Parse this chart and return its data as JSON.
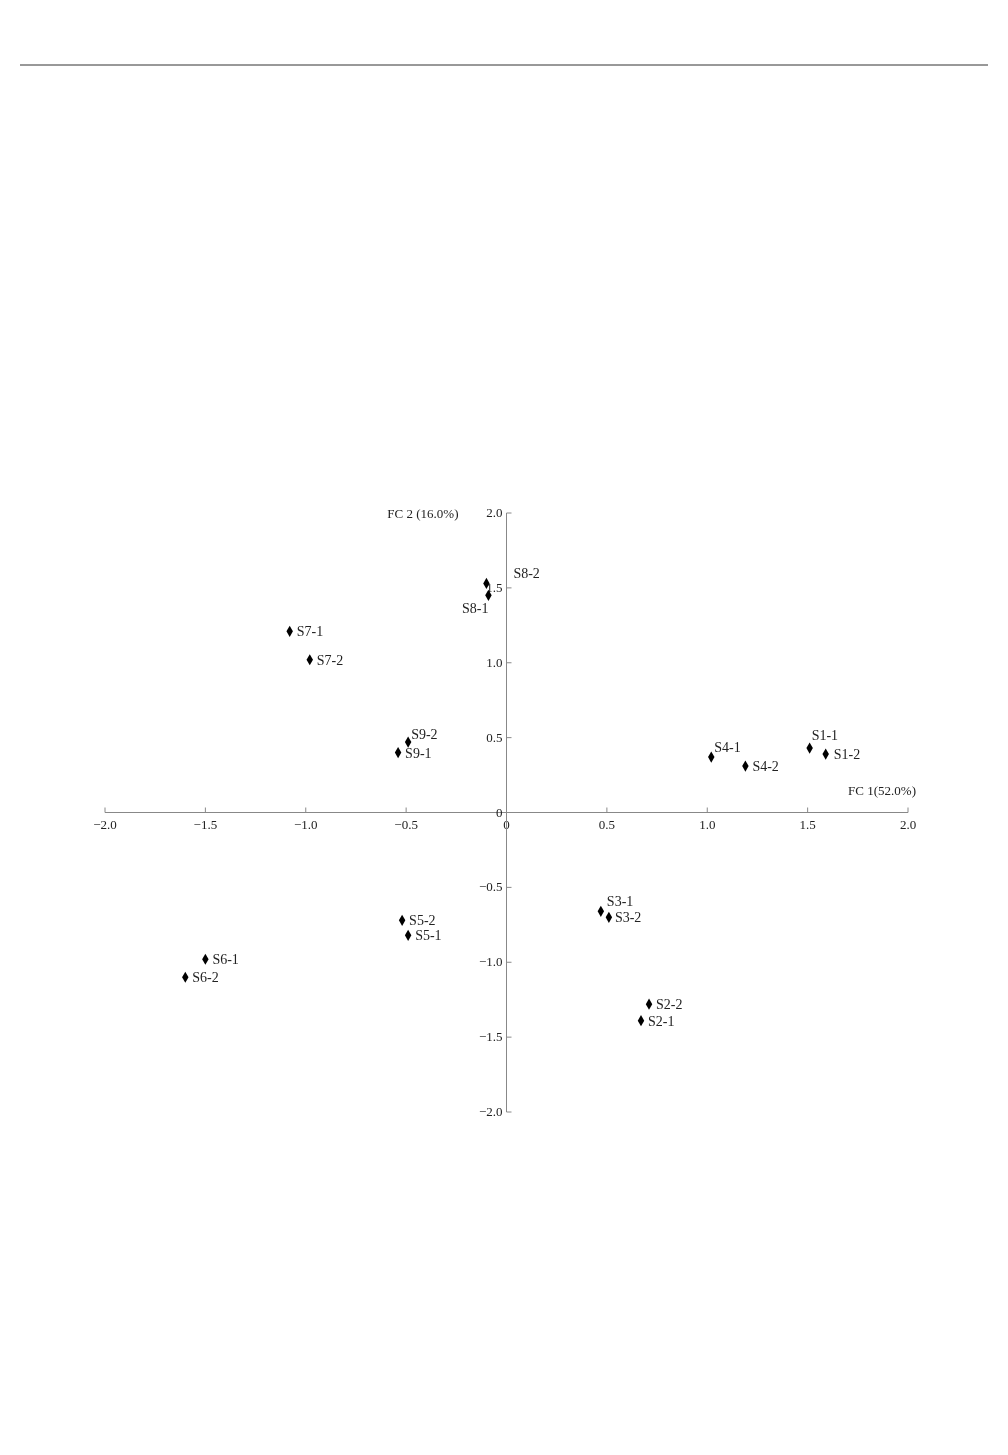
{
  "chart_data": {
    "type": "scatter",
    "xlabel": "FC 1(52.0%)",
    "ylabel": "FC 2 (16.0%)",
    "marker": "diamond",
    "grid": false,
    "x": [
      1.51,
      1.59,
      0.67,
      0.71,
      0.47,
      0.51,
      1.02,
      1.19,
      -0.49,
      -0.52,
      -1.5,
      -1.6,
      -1.08,
      -0.98,
      -0.09,
      -0.1,
      -0.54,
      -0.49
    ],
    "series": [
      {
        "color": "#000000",
        "values": [
          0.43,
          0.39,
          -1.39,
          -1.28,
          -0.66,
          -0.7,
          0.37,
          0.31,
          -0.82,
          -0.72,
          -0.98,
          -1.1,
          1.21,
          1.02,
          1.45,
          1.53,
          0.4,
          0.47
        ]
      }
    ],
    "annotations": [
      {
        "text": "S1-1",
        "x": 1.51,
        "y": 0.43
      },
      {
        "text": "S1-2",
        "x": 1.59,
        "y": 0.39
      },
      {
        "text": "S2-1",
        "x": 0.67,
        "y": -1.39
      },
      {
        "text": "S2-2",
        "x": 0.71,
        "y": -1.28
      },
      {
        "text": "S3-1",
        "x": 0.47,
        "y": -0.66
      },
      {
        "text": "S3-2",
        "x": 0.51,
        "y": -0.7
      },
      {
        "text": "S4-1",
        "x": 1.02,
        "y": 0.37
      },
      {
        "text": "S4-2",
        "x": 1.19,
        "y": 0.31
      },
      {
        "text": "S5-1",
        "x": -0.49,
        "y": -0.82
      },
      {
        "text": "S5-2",
        "x": -0.52,
        "y": -0.72
      },
      {
        "text": "S6-1",
        "x": -1.5,
        "y": -0.98
      },
      {
        "text": "S6-2",
        "x": -1.6,
        "y": -1.1
      },
      {
        "text": "S7-1",
        "x": -1.08,
        "y": 1.21
      },
      {
        "text": "S7-2",
        "x": -0.98,
        "y": 1.02
      },
      {
        "text": "S8-1",
        "x": -0.09,
        "y": 1.45
      },
      {
        "text": "S8-2",
        "x": -0.1,
        "y": 1.53
      },
      {
        "text": "S9-1",
        "x": -0.54,
        "y": 0.4
      },
      {
        "text": "S9-2",
        "x": -0.49,
        "y": 0.47
      }
    ],
    "xlim": [
      -2,
      2
    ],
    "ylim": [
      -2,
      2
    ],
    "xticks": [
      {
        "value": -2,
        "label": "−2.0"
      },
      {
        "value": -1.5,
        "label": "−1.5"
      },
      {
        "value": -1,
        "label": "−1.0"
      },
      {
        "value": -0.5,
        "label": "−0.5"
      },
      0,
      {
        "value": 0.5,
        "label": "0.5"
      },
      {
        "value": 1,
        "label": "1.0"
      },
      {
        "value": 1.5,
        "label": "1.5"
      },
      {
        "value": 2,
        "label": "2.0"
      }
    ],
    "yticks": [
      {
        "value": 2,
        "label": "2.0"
      },
      {
        "value": 1.5,
        "label": "1.5"
      },
      {
        "value": 1,
        "label": "1.0"
      },
      {
        "value": 0.5,
        "label": "0.5"
      },
      0,
      {
        "value": -0.5,
        "label": "−0.5"
      },
      {
        "value": -1,
        "label": "−1.0"
      },
      {
        "value": -1.5,
        "label": "−1.5"
      },
      {
        "value": -2,
        "label": "−2.0"
      }
    ]
  }
}
